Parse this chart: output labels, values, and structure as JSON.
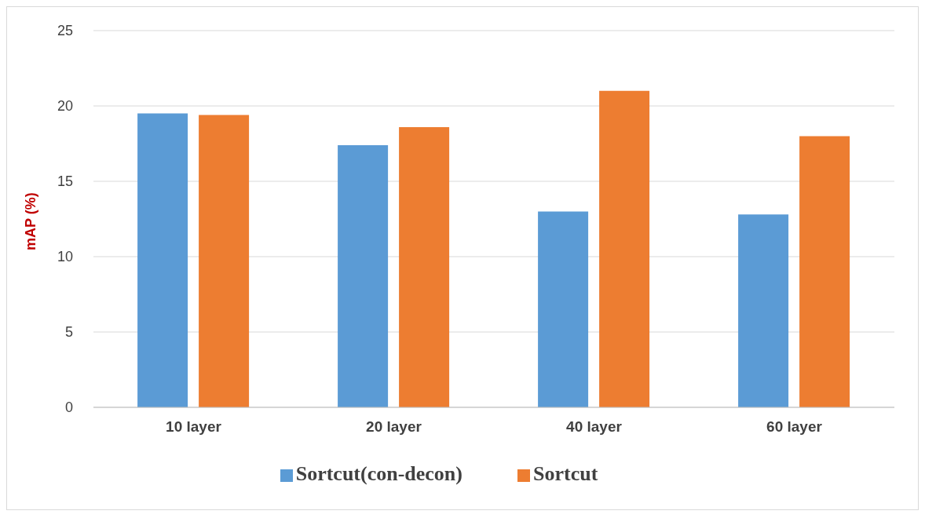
{
  "chart_data": {
    "type": "bar",
    "ylabel": "mAP (%)",
    "categories": [
      "10 layer",
      "20 layer",
      "40 layer",
      "60 layer"
    ],
    "series": [
      {
        "name": "Sortcut(con-decon)",
        "color": "#5b9bd5",
        "values": [
          19.5,
          17.4,
          13.0,
          12.8
        ]
      },
      {
        "name": "Sortcut",
        "color": "#ed7d31",
        "values": [
          19.4,
          18.6,
          21.0,
          18.0
        ]
      }
    ],
    "ylim": [
      0,
      25
    ],
    "yticks": [
      0,
      5,
      10,
      15,
      20,
      25
    ],
    "grid": "y",
    "legend": "bottom"
  }
}
